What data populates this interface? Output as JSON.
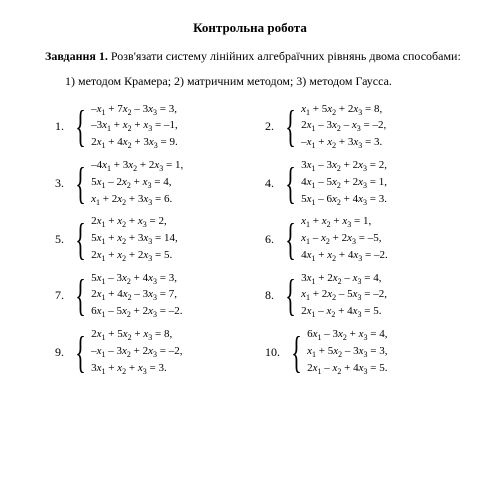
{
  "title": "Контрольна робота",
  "task_label": "Завдання 1.",
  "task_text": " Розв'язати систему лінійних алгебраїчних рівнянь двома способами:",
  "methods": "1) методом Крамера; 2) матричним методом; 3) методом Гаусса.",
  "problems": [
    {
      "n": "1.",
      "eq": [
        "–x₁ + 7x₂ – 3x₃ = 3,",
        "–3x₁ + x₂ + x₃ = –1,",
        "2x₁ + 4x₂ + 3x₃ = 9."
      ]
    },
    {
      "n": "2.",
      "eq": [
        "x₁ + 5x₂ + 2x₃ = 8,",
        "2x₁ – 3x₂ – x₃ = –2,",
        "–x₁ + x₂ + 3x₃ = 3."
      ]
    },
    {
      "n": "3.",
      "eq": [
        "–4x₁ + 3x₂ + 2x₃ = 1,",
        "5x₁ – 2x₂ + x₃ = 4,",
        "x₁ + 2x₂ + 3x₃ = 6."
      ]
    },
    {
      "n": "4.",
      "eq": [
        "3x₁ – 3x₂ + 2x₃ = 2,",
        "4x₁ – 5x₂ + 2x₃ = 1,",
        "5x₁ – 6x₂ + 4x₃ = 3."
      ]
    },
    {
      "n": "5.",
      "eq": [
        "2x₁ + x₂ + x₃ = 2,",
        "5x₁ + x₂ + 3x₃ = 14,",
        "2x₁ + x₂ + 2x₃ = 5."
      ]
    },
    {
      "n": "6.",
      "eq": [
        "x₁ + x₂ + x₃ = 1,",
        "x₁ – x₂ + 2x₃ = –5,",
        "4x₁ + x₂ + 4x₃ = –2."
      ]
    },
    {
      "n": "7.",
      "eq": [
        "5x₁ – 3x₂ + 4x₃ = 3,",
        "2x₁ + 4x₂ – 3x₃ = 7,",
        "6x₁ – 5x₂ + 2x₃ = –2."
      ]
    },
    {
      "n": "8.",
      "eq": [
        "3x₁ + 2x₂ – x₃ = 4,",
        "x₁ + 2x₂ – 5x₃ = –2,",
        "2x₁ – x₂ + 4x₃ = 5."
      ]
    },
    {
      "n": "9.",
      "eq": [
        "2x₁ + 5x₂ + x₃ = 8,",
        "–x₁ – 3x₂ + 2x₃ = –2,",
        "3x₁ + x₂ + x₃ = 3."
      ]
    },
    {
      "n": "10.",
      "eq": [
        "6x₁ – 3x₂ + x₃ = 4,",
        "x₁ + 5x₂ – 3x₃ = 3,",
        "2x₁ – x₂ + 4x₃ = 5."
      ]
    }
  ]
}
